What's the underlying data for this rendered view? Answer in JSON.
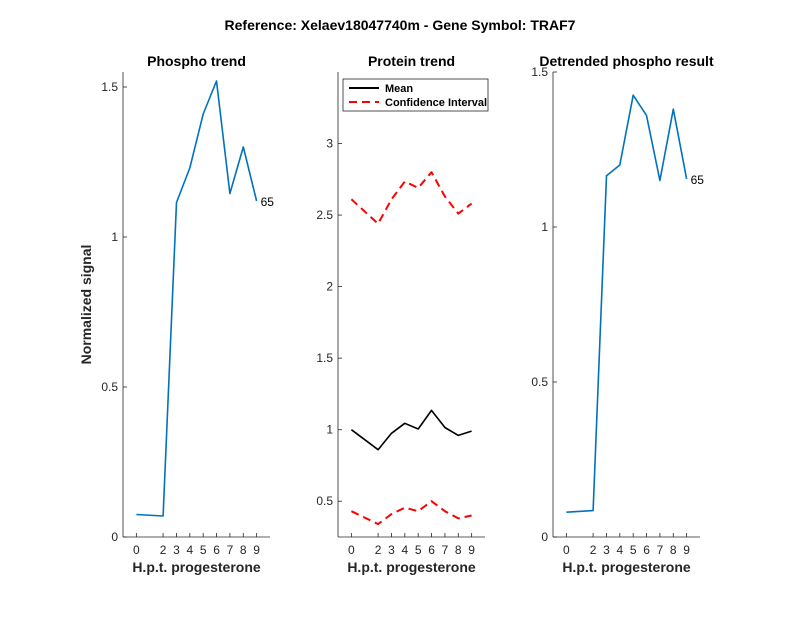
{
  "suptitle": "Reference:  Xelaev18047740m - Gene Symbol:  TRAF7",
  "colors": {
    "phospho": "#0072BD",
    "mean": "#000000",
    "ci": "#FF0000",
    "axis": "#262626"
  },
  "chart_data": [
    {
      "type": "line",
      "title": "Phospho trend",
      "xlabel": "H.p.t. progesterone",
      "ylabel": "Normalized signal",
      "x": [
        0,
        2,
        3,
        4,
        5,
        6,
        7,
        8,
        9
      ],
      "xticks": [
        0,
        2,
        3,
        4,
        5,
        6,
        7,
        8,
        9
      ],
      "xlim": [
        -1,
        10
      ],
      "ylim": [
        0,
        1.55
      ],
      "yticks": [
        0,
        0.5,
        1,
        1.5
      ],
      "yticklabels": [
        "0",
        "0.5",
        "1",
        "1.5"
      ],
      "series": [
        {
          "values": [
            0.075,
            0.07,
            1.115,
            1.23,
            1.41,
            1.52,
            1.145,
            1.3,
            1.12
          ],
          "color": "#0072BD",
          "dash": "solid"
        }
      ],
      "end_label": "65"
    },
    {
      "type": "line",
      "title": "Protein trend",
      "xlabel": "H.p.t. progesterone",
      "ylabel": "",
      "x": [
        0,
        2,
        3,
        4,
        5,
        6,
        7,
        8,
        9
      ],
      "xticks": [
        0,
        2,
        3,
        4,
        5,
        6,
        7,
        8,
        9
      ],
      "xlim": [
        -1,
        10
      ],
      "ylim": [
        0.25,
        3.5
      ],
      "yticks": [
        0.5,
        1,
        1.5,
        2,
        2.5,
        3
      ],
      "yticklabels": [
        "0.5",
        "1",
        "1.5",
        "2",
        "2.5",
        "3"
      ],
      "legend": {
        "position": "top-left",
        "entries": [
          "Mean",
          "Confidence Interval"
        ]
      },
      "series": [
        {
          "name": "Mean",
          "values": [
            1.0,
            0.86,
            0.975,
            1.045,
            1.005,
            1.135,
            1.015,
            0.96,
            0.99
          ],
          "color": "#000000",
          "dash": "solid"
        },
        {
          "name": "Confidence Interval",
          "values": [
            2.61,
            2.44,
            2.61,
            2.735,
            2.69,
            2.8,
            2.63,
            2.51,
            2.58
          ],
          "color": "#FF0000",
          "dash": "dashed"
        },
        {
          "values": [
            0.43,
            0.34,
            0.41,
            0.455,
            0.43,
            0.5,
            0.43,
            0.38,
            0.4
          ],
          "color": "#FF0000",
          "dash": "dashed"
        }
      ]
    },
    {
      "type": "line",
      "title": "Detrended phospho result",
      "xlabel": "H.p.t. progesterone",
      "ylabel": "",
      "x": [
        0,
        2,
        3,
        4,
        5,
        6,
        7,
        8,
        9
      ],
      "xticks": [
        0,
        2,
        3,
        4,
        5,
        6,
        7,
        8,
        9
      ],
      "xlim": [
        -1,
        10
      ],
      "ylim": [
        0,
        1.5
      ],
      "yticks": [
        0,
        0.5,
        1,
        1.5
      ],
      "yticklabels": [
        "0",
        "0.5",
        "1",
        "1.5"
      ],
      "series": [
        {
          "values": [
            0.08,
            0.085,
            1.165,
            1.2,
            1.425,
            1.36,
            1.15,
            1.38,
            1.155
          ],
          "color": "#0072BD",
          "dash": "solid"
        }
      ],
      "end_label": "65"
    }
  ]
}
